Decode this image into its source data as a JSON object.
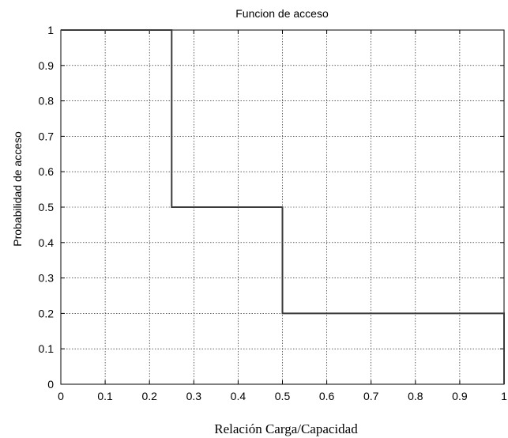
{
  "chart_data": {
    "type": "line",
    "title": "Funcion de acceso",
    "xlabel": "Relación Carga/Capacidad",
    "ylabel": "Probabilidad de acceso",
    "xlim": [
      0,
      1
    ],
    "ylim": [
      0,
      1
    ],
    "grid": true,
    "x_ticks": [
      "0",
      "0.1",
      "0.2",
      "0.3",
      "0.4",
      "0.5",
      "0.6",
      "0.7",
      "0.8",
      "0.9",
      "1"
    ],
    "y_ticks": [
      "0",
      "0.1",
      "0.2",
      "0.3",
      "0.4",
      "0.5",
      "0.6",
      "0.7",
      "0.8",
      "0.9",
      "1"
    ],
    "series": [
      {
        "step": "post",
        "x": [
          0,
          0.25,
          0.25,
          0.5,
          0.5,
          1,
          1
        ],
        "y": [
          1,
          1,
          0.5,
          0.5,
          0.2,
          0.2,
          0
        ],
        "color": "#3a3a3a"
      }
    ]
  }
}
